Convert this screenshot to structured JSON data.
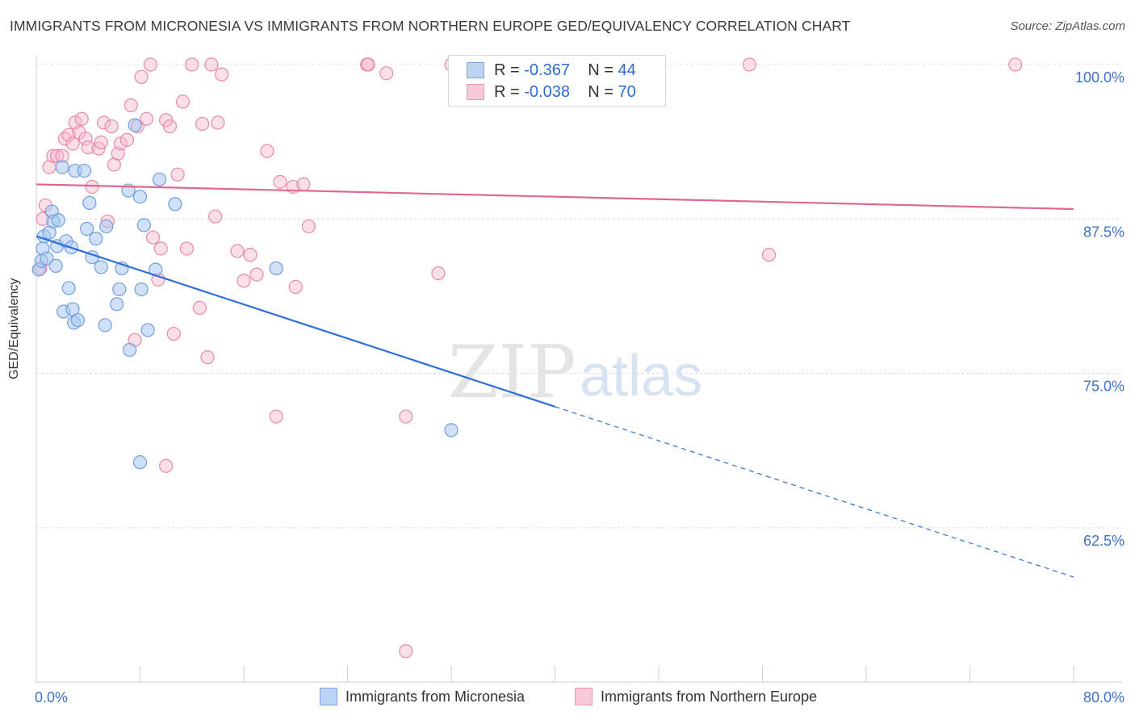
{
  "title": "IMMIGRANTS FROM MICRONESIA VS IMMIGRANTS FROM NORTHERN EUROPE GED/EQUIVALENCY CORRELATION CHART",
  "source": "Source: ZipAtlas.com",
  "watermark": {
    "zip": "ZIP",
    "atlas": "atlas"
  },
  "legend": {
    "r_label": "R =",
    "n_label": "N =",
    "rows": [
      {
        "r": "-0.367",
        "n": "44"
      },
      {
        "r": "-0.038",
        "n": "70"
      }
    ]
  },
  "colors": {
    "blue_fill": "#a9c8f0",
    "blue_stroke": "#6f9ee0",
    "blue_line": "#2f6fd6",
    "pink_fill": "#f6b9cc",
    "pink_stroke": "#e88aa8",
    "pink_line": "#e0688f",
    "tick_text": "#3d72cc"
  },
  "chart_data": {
    "type": "scatter",
    "title": "IMMIGRANTS FROM MICRONESIA VS IMMIGRANTS FROM NORTHERN EUROPE GED/EQUIVALENCY CORRELATION CHART",
    "xlabel": "",
    "ylabel": "GED/Equivalency",
    "xlim": [
      0,
      80
    ],
    "ylim": [
      50,
      100
    ],
    "x_tick_labels": [
      "0.0%",
      "80.0%"
    ],
    "y_ticks": [
      62.5,
      75.0,
      87.5,
      100.0
    ],
    "y_tick_labels": [
      "62.5%",
      "75.0%",
      "87.5%",
      "100.0%"
    ],
    "grid": true,
    "legend_position": "bottom",
    "series": [
      {
        "name": "Immigrants from Micronesia",
        "r": -0.367,
        "n": 44,
        "trend": {
          "x0": 0,
          "y0": 86.1,
          "x1": 40,
          "y1": 72.3,
          "dashed_to_x": 80,
          "dashed_to_y": 58.5
        },
        "points": [
          [
            0.2,
            83.4
          ],
          [
            0.4,
            84.1
          ],
          [
            0.5,
            85.1
          ],
          [
            0.6,
            86.1
          ],
          [
            0.8,
            84.3
          ],
          [
            1.0,
            86.4
          ],
          [
            1.2,
            88.1
          ],
          [
            1.3,
            87.3
          ],
          [
            1.5,
            83.7
          ],
          [
            1.6,
            85.3
          ],
          [
            1.7,
            87.4
          ],
          [
            2.0,
            91.7
          ],
          [
            2.1,
            80.0
          ],
          [
            2.3,
            85.7
          ],
          [
            2.5,
            81.9
          ],
          [
            2.7,
            85.2
          ],
          [
            2.8,
            80.2
          ],
          [
            2.9,
            79.1
          ],
          [
            3.0,
            91.4
          ],
          [
            3.2,
            79.3
          ],
          [
            3.7,
            91.4
          ],
          [
            3.9,
            86.7
          ],
          [
            4.1,
            88.8
          ],
          [
            4.3,
            84.4
          ],
          [
            4.6,
            85.9
          ],
          [
            5.0,
            83.6
          ],
          [
            5.3,
            78.9
          ],
          [
            5.4,
            86.9
          ],
          [
            6.2,
            80.6
          ],
          [
            6.4,
            81.8
          ],
          [
            6.6,
            83.5
          ],
          [
            7.1,
            89.8
          ],
          [
            7.2,
            76.9
          ],
          [
            7.6,
            95.1
          ],
          [
            8.0,
            89.3
          ],
          [
            8.1,
            81.8
          ],
          [
            8.0,
            67.8
          ],
          [
            8.6,
            78.5
          ],
          [
            9.2,
            83.4
          ],
          [
            9.5,
            90.7
          ],
          [
            10.7,
            88.7
          ],
          [
            18.5,
            83.5
          ],
          [
            32.0,
            70.4
          ],
          [
            8.3,
            87.0
          ]
        ]
      },
      {
        "name": "Immigrants from Northern Europe",
        "r": -0.038,
        "n": 70,
        "trend": {
          "x0": 0,
          "y0": 90.3,
          "x1": 80,
          "y1": 88.3
        },
        "points": [
          [
            0.3,
            83.5
          ],
          [
            0.5,
            87.5
          ],
          [
            0.7,
            88.6
          ],
          [
            1.0,
            91.7
          ],
          [
            1.3,
            92.6
          ],
          [
            1.6,
            92.6
          ],
          [
            2.0,
            92.6
          ],
          [
            2.2,
            94.0
          ],
          [
            2.5,
            94.3
          ],
          [
            2.8,
            93.6
          ],
          [
            3.0,
            95.3
          ],
          [
            3.3,
            94.5
          ],
          [
            3.5,
            95.6
          ],
          [
            3.8,
            94.0
          ],
          [
            4.0,
            93.3
          ],
          [
            4.3,
            90.1
          ],
          [
            4.8,
            93.2
          ],
          [
            5.0,
            93.7
          ],
          [
            5.2,
            95.3
          ],
          [
            5.5,
            87.3
          ],
          [
            5.8,
            95.0
          ],
          [
            6.0,
            91.9
          ],
          [
            6.3,
            92.8
          ],
          [
            6.5,
            93.6
          ],
          [
            7.0,
            93.9
          ],
          [
            7.3,
            96.7
          ],
          [
            7.6,
            77.7
          ],
          [
            7.8,
            95.0
          ],
          [
            8.1,
            99.0
          ],
          [
            8.5,
            95.6
          ],
          [
            8.8,
            100.0
          ],
          [
            9.0,
            86.0
          ],
          [
            9.4,
            82.6
          ],
          [
            9.6,
            85.1
          ],
          [
            10.0,
            95.5
          ],
          [
            10.3,
            95.0
          ],
          [
            10.6,
            78.2
          ],
          [
            10.9,
            91.1
          ],
          [
            11.3,
            97.0
          ],
          [
            11.6,
            85.1
          ],
          [
            12.0,
            100.0
          ],
          [
            12.6,
            80.3
          ],
          [
            12.8,
            95.2
          ],
          [
            13.2,
            76.3
          ],
          [
            13.5,
            100.0
          ],
          [
            13.8,
            87.7
          ],
          [
            14.0,
            95.3
          ],
          [
            14.3,
            99.2
          ],
          [
            15.5,
            84.9
          ],
          [
            16.0,
            82.5
          ],
          [
            16.5,
            84.6
          ],
          [
            17.0,
            83.0
          ],
          [
            17.8,
            93.0
          ],
          [
            18.5,
            71.5
          ],
          [
            18.8,
            90.5
          ],
          [
            19.8,
            90.1
          ],
          [
            20.0,
            82.0
          ],
          [
            20.6,
            90.3
          ],
          [
            21.0,
            86.9
          ],
          [
            25.5,
            100.0
          ],
          [
            25.6,
            100.0
          ],
          [
            27.0,
            99.3
          ],
          [
            28.5,
            71.5
          ],
          [
            28.5,
            52.5
          ],
          [
            31.0,
            83.1
          ],
          [
            32.0,
            100.0
          ],
          [
            55.0,
            100.0
          ],
          [
            56.5,
            84.6
          ],
          [
            75.5,
            100.0
          ],
          [
            10.0,
            67.5
          ]
        ]
      }
    ]
  }
}
